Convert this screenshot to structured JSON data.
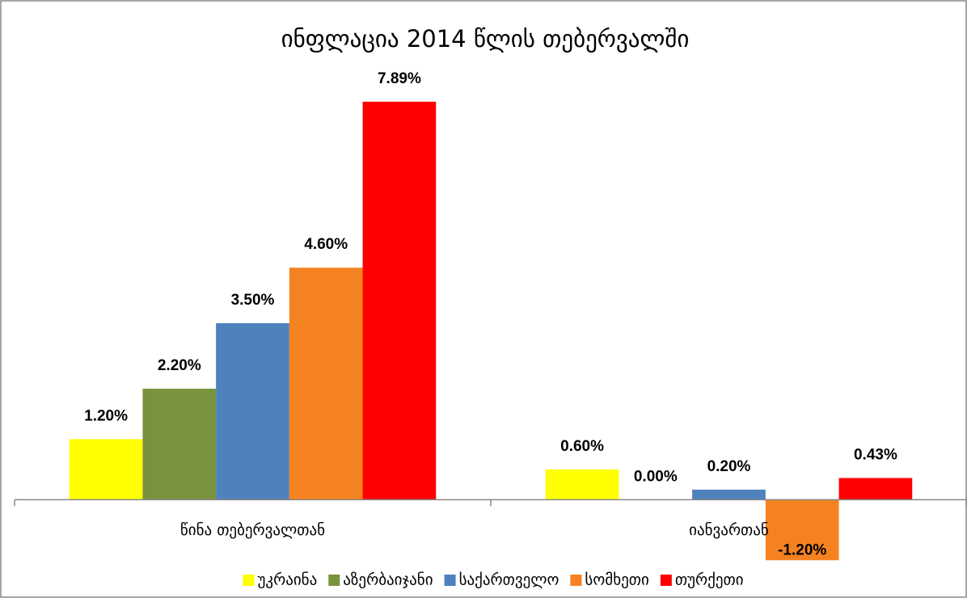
{
  "chart_data": {
    "type": "bar",
    "title": "ინფლაცია 2014 წლის თებერვალში",
    "categories": [
      "წინა თებერვალთან",
      "იანვართან"
    ],
    "series": [
      {
        "name": "უკრაინა",
        "color": "#ffff00",
        "values": [
          1.2,
          0.6
        ],
        "value_labels": [
          "1.20%",
          "0.60%"
        ]
      },
      {
        "name": "აზერბაიჯანი",
        "color": "#77933c",
        "values": [
          2.2,
          0.0
        ],
        "value_labels": [
          "2.20%",
          "0.00%"
        ]
      },
      {
        "name": "საქართველო",
        "color": "#4f81bd",
        "values": [
          3.5,
          0.2
        ],
        "value_labels": [
          "3.50%",
          "0.20%"
        ]
      },
      {
        "name": "სომხეთი",
        "color": "#f58220",
        "values": [
          4.6,
          -1.2
        ],
        "value_labels": [
          "4.60%",
          "-1.20%"
        ]
      },
      {
        "name": "თურქეთი",
        "color": "#ff0000",
        "values": [
          7.89,
          0.43
        ],
        "value_labels": [
          "7.89%",
          "0.43%"
        ]
      }
    ],
    "ylim": [
      -1.5,
      8
    ],
    "legend": "bottom"
  }
}
